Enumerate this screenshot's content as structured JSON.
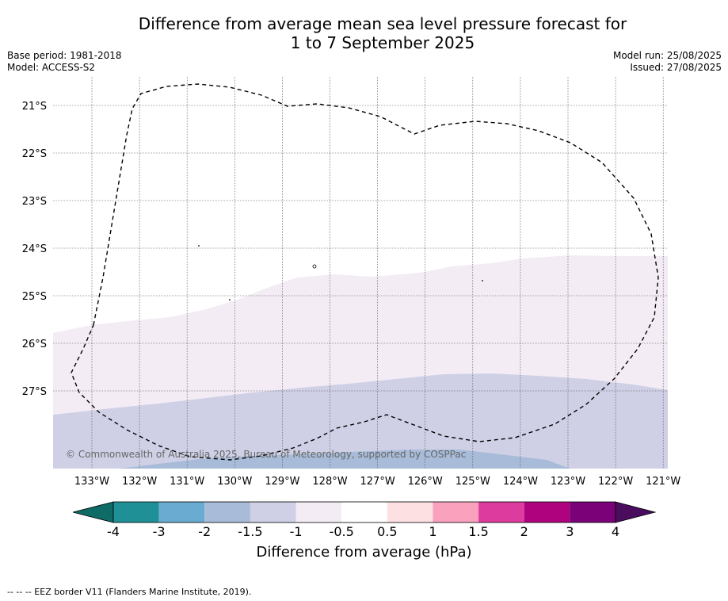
{
  "header": {
    "title_line1": "Difference from average mean sea level pressure forecast for",
    "title_line2": "1 to 7 September 2025",
    "base_period": "Base period: 1981-2018",
    "model": "Model: ACCESS-S2",
    "model_run": "Model run: 25/08/2025",
    "issued": "Issued: 27/08/2025"
  },
  "map": {
    "lat_labels": [
      "21°S",
      "22°S",
      "23°S",
      "24°S",
      "25°S",
      "26°S",
      "27°S"
    ],
    "lon_labels": [
      "133°W",
      "132°W",
      "131°W",
      "130°W",
      "129°W",
      "128°W",
      "127°W",
      "126°W",
      "125°W",
      "124°W",
      "123°W",
      "122°W",
      "121°W"
    ],
    "copyright": "© Commonwealth of Australia 2025, Bureau of Meteorology, supported by COSPPac",
    "region_colors": {
      "light_lilac": "#f3ecf5",
      "lavender": "#cfd0e6",
      "light_blue": "#a8bcd9"
    }
  },
  "colorbar": {
    "tick_labels": [
      "-4",
      "-3",
      "-2",
      "-1.5",
      "-1",
      "-0.5",
      "0.5",
      "1",
      "1.5",
      "2",
      "3",
      "4"
    ],
    "colors": [
      "#0f6b66",
      "#1e9096",
      "#6aabd1",
      "#a8bcd9",
      "#cfd0e6",
      "#f3ecf5",
      "#ffffff",
      "#fde0e1",
      "#f9a1bd",
      "#dd3b9e",
      "#ae027e",
      "#7a0177",
      "#4a0d5e"
    ],
    "label": "Difference from average (hPa)"
  },
  "footer": {
    "source": "--  --  -- EEZ border V11 (Flanders Marine Institute, 2019)."
  }
}
